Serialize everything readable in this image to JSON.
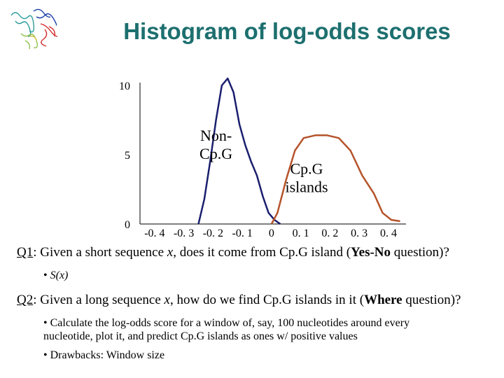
{
  "slide": {
    "title": "Histogram of log-odds scores",
    "q1": {
      "label": "Q1",
      "text_a": ": Given a short sequence ",
      "var": "x",
      "text_b": ", does it come from Cp.G island (",
      "bold": "Yes-No",
      "text_c": " question)?"
    },
    "q1_bullet": {
      "marker": "•",
      "text": "S(x)"
    },
    "q2": {
      "label": "Q2",
      "text_a": ": Given a long sequence ",
      "var": "x",
      "text_b": ", how do we find Cp.G islands in it (",
      "bold": "Where",
      "text_c": " question)?"
    },
    "q2_bullets": [
      {
        "marker": "•",
        "line1": "Calculate the log-odds score for a window of, say, 100 nucleotides around every",
        "line2": "nucleotide, plot it, and predict Cp.G islands as ones w/ positive values"
      },
      {
        "marker": "•",
        "line1": "Drawbacks: Window size",
        "line2": ""
      }
    ]
  },
  "chart_data": {
    "type": "line",
    "x_ticks": [
      -0.4,
      -0.3,
      -0.2,
      -0.1,
      0,
      0.1,
      0.2,
      0.3,
      0.4
    ],
    "x_tick_labels": [
      "-0. 4",
      "-0. 3",
      "-0. 2",
      "-0. 1",
      "0",
      "0. 1",
      "0. 2",
      "0. 3",
      "0. 4"
    ],
    "y_ticks": [
      0,
      5,
      10
    ],
    "y_tick_labels": [
      "0",
      "5",
      "10"
    ],
    "xlim": [
      -0.45,
      0.46
    ],
    "ylim": [
      0,
      10
    ],
    "grid": false,
    "series": [
      {
        "name": "Non- Cp.G",
        "name_lines": [
          "Non-",
          "Cp.G"
        ],
        "color": "#1a1f6e",
        "x": [
          -0.25,
          -0.23,
          -0.21,
          -0.19,
          -0.17,
          -0.15,
          -0.13,
          -0.11,
          -0.09,
          -0.07,
          -0.05,
          -0.03,
          -0.01,
          0.01,
          0.03
        ],
        "y": [
          0.0,
          1.8,
          4.5,
          7.5,
          10.0,
          10.5,
          9.5,
          7.2,
          5.7,
          4.5,
          3.5,
          2.0,
          0.8,
          0.3,
          0.0
        ]
      },
      {
        "name": "Cp.G islands",
        "name_lines": [
          "Cp.G",
          "islands"
        ],
        "color": "#b5532a",
        "x": [
          0.0,
          0.02,
          0.05,
          0.08,
          0.11,
          0.15,
          0.19,
          0.23,
          0.27,
          0.31,
          0.35,
          0.38,
          0.41,
          0.44
        ],
        "y": [
          0.0,
          0.8,
          3.2,
          5.3,
          6.2,
          6.4,
          6.4,
          6.2,
          5.3,
          3.5,
          2.2,
          0.8,
          0.3,
          0.2
        ]
      }
    ]
  }
}
